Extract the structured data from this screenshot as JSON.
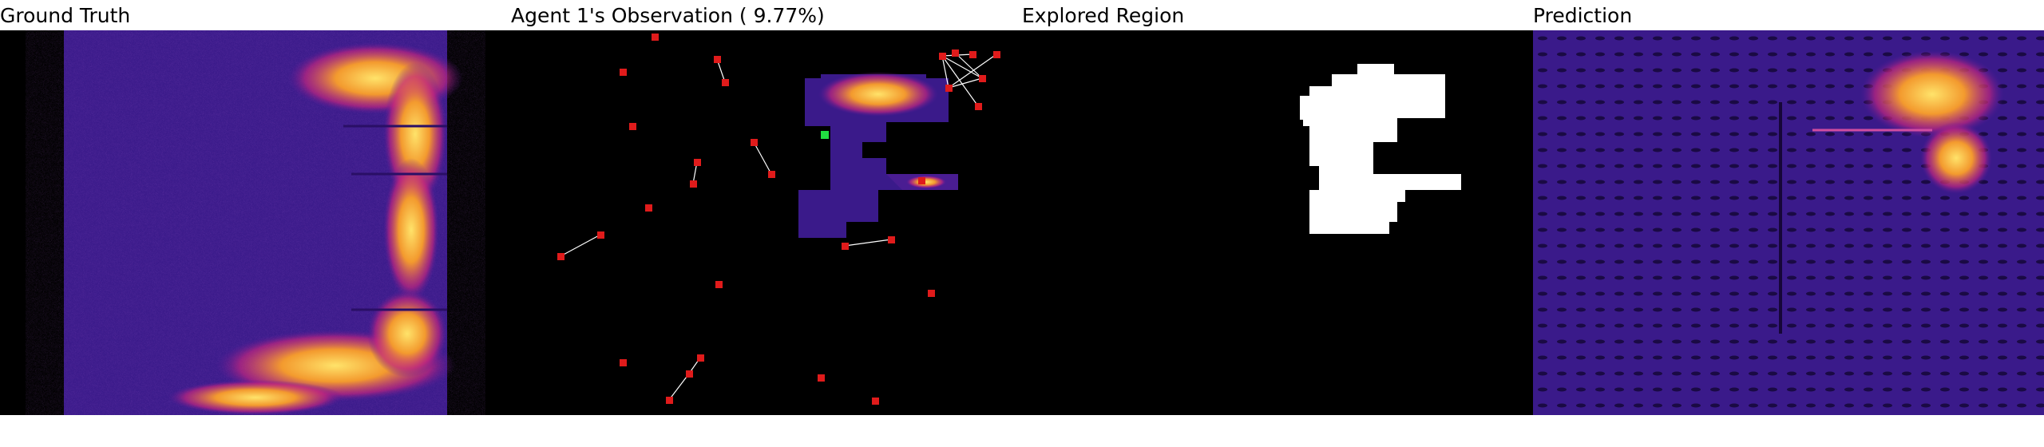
{
  "panels": [
    {
      "title": "Ground Truth"
    },
    {
      "title": "Agent 1's Observation",
      "coverage": "( 9.77%)"
    },
    {
      "title": "Explored Region"
    },
    {
      "title": "Prediction"
    }
  ],
  "colors": {
    "background": "#000000",
    "heat_low": "#3a1a8a",
    "heat_mid": "#b0208a",
    "heat_high": "#ffd94a",
    "agent_marker": "#e01b1b",
    "current_agent": "#20e040",
    "trajectory": "#ffffff",
    "explored_mask": "#ffffff"
  },
  "explored_fraction": 0.0977
}
